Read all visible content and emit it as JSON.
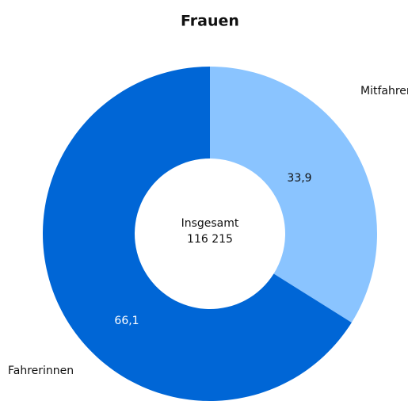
{
  "chart_data": {
    "type": "donut",
    "title": "Frauen",
    "categories": [
      "Mitfahrerinnen",
      "Fahrerinnen"
    ],
    "values": [
      33.9,
      66.1
    ],
    "value_labels": [
      "33,9",
      "66,1"
    ],
    "colors": [
      "#8ac4ff",
      "#0066d6"
    ],
    "center_text": "Insgesamt",
    "total": {
      "value": 116215,
      "label": "116 215"
    }
  }
}
